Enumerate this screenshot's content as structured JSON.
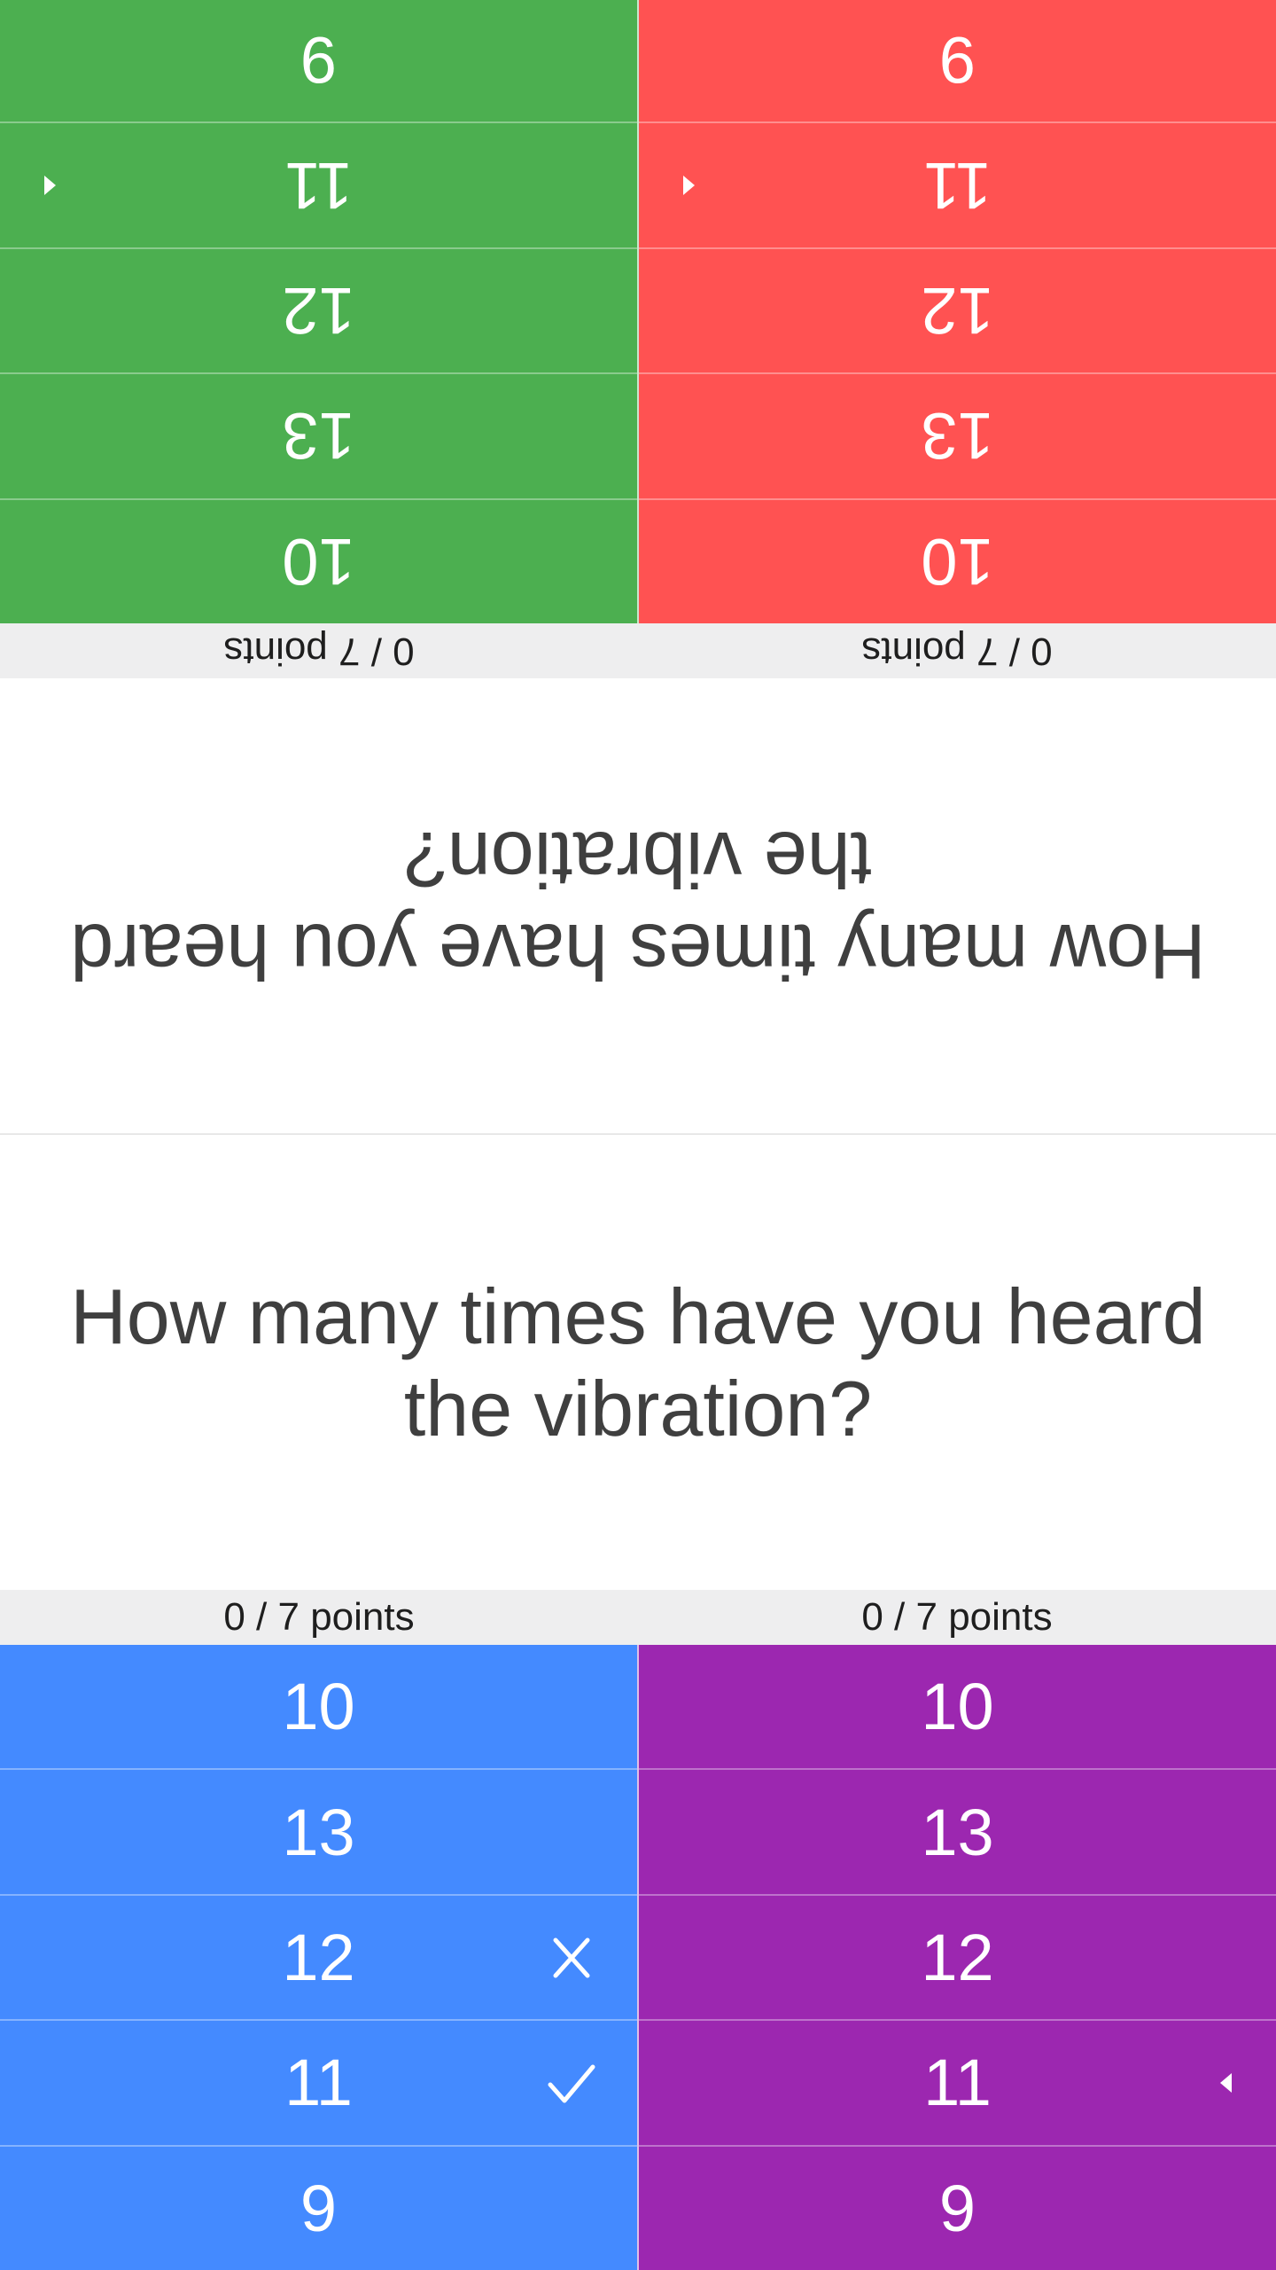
{
  "question": "How many times have you heard the vibration?",
  "players": [
    {
      "id": "red",
      "color": "#FF5252",
      "points": "0 / 7 points",
      "options": [
        "10",
        "13",
        "12",
        "11",
        "9"
      ],
      "marker_on": "11"
    },
    {
      "id": "green",
      "color": "#4CAF50",
      "points": "0 / 7 points",
      "options": [
        "10",
        "13",
        "12",
        "11",
        "9"
      ],
      "marker_on": "11"
    },
    {
      "id": "blue",
      "color": "#448AFF",
      "points": "0 / 7 points",
      "options": [
        "10",
        "13",
        "12",
        "11",
        "9"
      ],
      "wrong": "12",
      "correct": "11"
    },
    {
      "id": "purple",
      "color": "#9C27B0",
      "points": "0 / 7 points",
      "options": [
        "10",
        "13",
        "12",
        "11",
        "9"
      ],
      "marker_on": "11"
    }
  ],
  "icons": {
    "correct": "check-icon",
    "wrong": "close-icon",
    "marker": "pointer-triangle-icon"
  }
}
